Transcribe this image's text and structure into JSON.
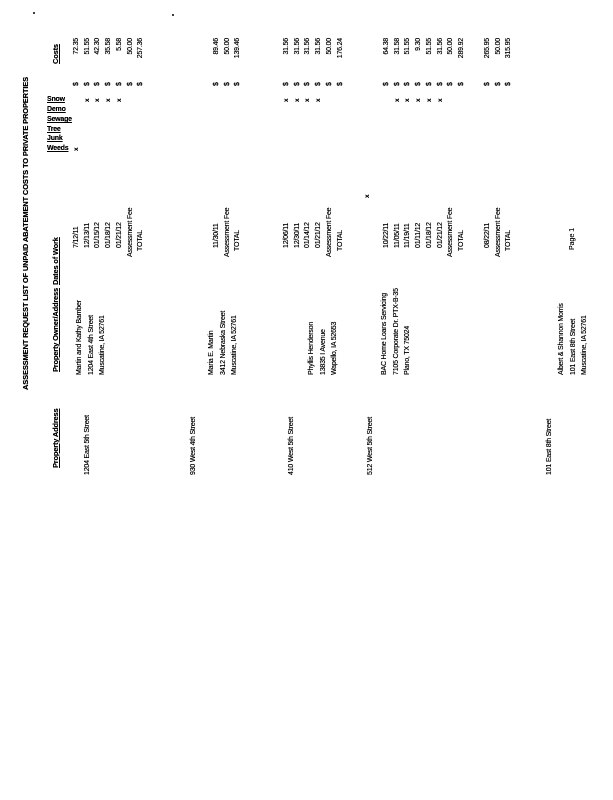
{
  "document": {
    "title": "ASSESSMENT REQUEST LIST OF UNPAID ABATEMENT COSTS TO PRIVATE PROPERTIES",
    "footer": "Page 1"
  },
  "table": {
    "headers": {
      "property_address": "Property Address",
      "owner": "Property Owner/Address",
      "dates_of_work": "Dates of Work",
      "costs": "Costs",
      "categories": [
        "Weeds",
        "Junk",
        "Tree",
        "Sewage",
        "Demo",
        "Snow"
      ]
    },
    "currency_symbol": "$",
    "fee_label": "Assessment Fee",
    "total_label": "TOTAL",
    "mark_symbol": "x",
    "stray_mark": "x",
    "blocks": [
      {
        "property_address": "1204 East 5th Street",
        "owner_lines": [
          "Martin and Kathy Bamber",
          "1204 East 4th Street",
          "Muscatine, IA 52761"
        ],
        "work_rows": [
          {
            "date": "7/12/11",
            "marks": [
              0
            ],
            "amount": "72.35"
          },
          {
            "date": "12/13/11",
            "marks": [
              5
            ],
            "amount": "51.55"
          },
          {
            "date": "01/15/12",
            "marks": [
              5
            ],
            "amount": "42.30"
          },
          {
            "date": "01/18/12",
            "marks": [
              5
            ],
            "amount": "35.58"
          },
          {
            "date": "01/21/12",
            "marks": [
              5
            ],
            "amount": "5.58"
          }
        ],
        "assessment_fee": "50.00",
        "total": "257.36"
      },
      {
        "property_address": "930 West 4th Street",
        "owner_lines": [
          "Maria E. Martin",
          "3412 Nebraska Street",
          "Muscatine, IA 52761"
        ],
        "work_rows": [
          {
            "date": "11/30/11",
            "marks": [],
            "amount": "89.46"
          }
        ],
        "assessment_fee": "50.00",
        "total": "139.46"
      },
      {
        "property_address": "410 West 5th Street",
        "owner_lines": [
          "Phyllis Henderson",
          "13835 I Avenue",
          "Wapello, IA 52653"
        ],
        "work_rows": [
          {
            "date": "12/06/11",
            "marks": [
              5
            ],
            "amount": "31.56"
          },
          {
            "date": "12/30/11",
            "marks": [
              5
            ],
            "amount": "31.56"
          },
          {
            "date": "01/14/12",
            "marks": [
              5
            ],
            "amount": "31.56"
          },
          {
            "date": "01/21/12",
            "marks": [
              5
            ],
            "amount": "31.56"
          }
        ],
        "assessment_fee": "50.00",
        "total": "176.24"
      },
      {
        "property_address": "512 West 5th Street",
        "owner_lines": [
          "BAC Home Loans Servicing",
          "7105 Corporate Dr. PTX-B-35",
          "Plano, TX 75024"
        ],
        "work_rows": [
          {
            "date": "10/22/11",
            "marks": [],
            "amount": "64.38"
          },
          {
            "date": "11/05/11",
            "marks": [
              5
            ],
            "amount": "31.58"
          },
          {
            "date": "11/19/11",
            "marks": [
              5
            ],
            "amount": "51.55"
          },
          {
            "date": "01/11/12",
            "marks": [
              5
            ],
            "amount": "9.30"
          },
          {
            "date": "01/18/12",
            "marks": [
              5
            ],
            "amount": "51.55"
          },
          {
            "date": "01/21/12",
            "marks": [
              5
            ],
            "amount": "31.56"
          }
        ],
        "assessment_fee": "50.00",
        "total": "289.92"
      },
      {
        "property_address": "101 East 8th Street",
        "owner_lines": [
          "Albert & Shannon Morris",
          "101 East 8th Street",
          "Muscatine, IA 52761"
        ],
        "work_rows": [
          {
            "date": "08/22/11",
            "marks": [],
            "amount": "265.95"
          }
        ],
        "assessment_fee": "50.00",
        "total": "315.95"
      }
    ]
  }
}
